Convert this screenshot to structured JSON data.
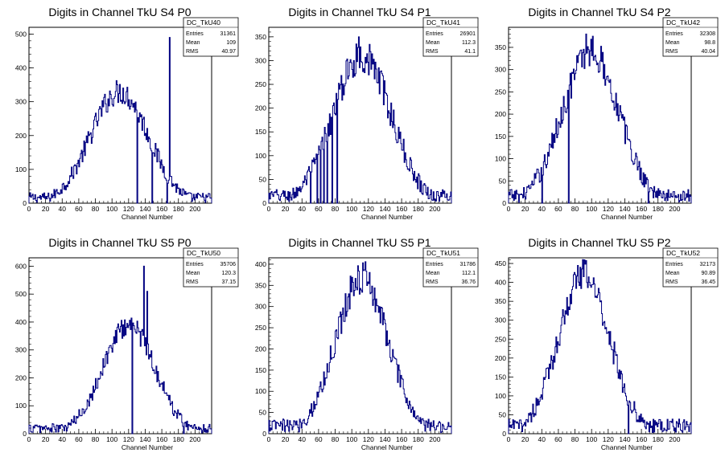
{
  "chart_data": [
    {
      "type": "histogram",
      "title": "Digits in Channel TkU S4 P0",
      "xlabel": "Channel Number",
      "stats": {
        "name": "DC_TkU40",
        "entries": "31361",
        "mean": "109",
        "rms": "40.97"
      },
      "xlim": [
        0,
        220
      ],
      "ylim": [
        0,
        520
      ],
      "xticks": [
        0,
        20,
        40,
        60,
        80,
        100,
        120,
        140,
        160,
        180,
        200
      ],
      "yticks": [
        0,
        100,
        200,
        300,
        400,
        500
      ],
      "bin_width": 1,
      "peak_value": 330,
      "spikes": [
        {
          "x": 169,
          "value": 490
        }
      ],
      "dips": [
        {
          "x": 130,
          "value": 0
        },
        {
          "x": 148,
          "value": 0
        },
        {
          "x": 166,
          "value": 0
        }
      ]
    },
    {
      "type": "histogram",
      "title": "Digits in Channel TkU S4 P1",
      "xlabel": "Channel Number",
      "stats": {
        "name": "DC_TkU41",
        "entries": "26901",
        "mean": "112.3",
        "rms": "41.1"
      },
      "xlim": [
        0,
        220
      ],
      "ylim": [
        0,
        370
      ],
      "xticks": [
        0,
        20,
        40,
        60,
        80,
        100,
        120,
        140,
        160,
        180,
        200
      ],
      "yticks": [
        0,
        50,
        100,
        150,
        200,
        250,
        300,
        350
      ],
      "bin_width": 1,
      "peak_value": 310,
      "spikes": [
        {
          "x": 108,
          "value": 350
        }
      ],
      "dips": [
        {
          "x": 50,
          "value": 0
        },
        {
          "x": 58,
          "value": 0
        },
        {
          "x": 62,
          "value": 0
        },
        {
          "x": 66,
          "value": 0
        },
        {
          "x": 70,
          "value": 0
        },
        {
          "x": 76,
          "value": 0
        },
        {
          "x": 82,
          "value": 0
        }
      ]
    },
    {
      "type": "histogram",
      "title": "Digits in Channel TkU S4 P2",
      "xlabel": "Channel Number",
      "stats": {
        "name": "DC_TkU42",
        "entries": "32308",
        "mean": "98.8",
        "rms": "40.04"
      },
      "xlim": [
        0,
        220
      ],
      "ylim": [
        0,
        395
      ],
      "xticks": [
        0,
        20,
        40,
        60,
        80,
        100,
        120,
        140,
        160,
        180,
        200
      ],
      "yticks": [
        0,
        50,
        100,
        150,
        200,
        250,
        300,
        350
      ],
      "bin_width": 1,
      "peak_value": 340,
      "spikes": [
        {
          "x": 93,
          "value": 380
        },
        {
          "x": 101,
          "value": 375
        }
      ],
      "dips": [
        {
          "x": 40,
          "value": 0
        },
        {
          "x": 72,
          "value": 0
        },
        {
          "x": 168,
          "value": 0
        }
      ]
    },
    {
      "type": "histogram",
      "title": "Digits in Channel TkU S5 P0",
      "xlabel": "Channel Number",
      "stats": {
        "name": "DC_TkU50",
        "entries": "35706",
        "mean": "120.3",
        "rms": "37.15"
      },
      "xlim": [
        0,
        220
      ],
      "ylim": [
        0,
        630
      ],
      "xticks": [
        0,
        20,
        40,
        60,
        80,
        100,
        120,
        140,
        160,
        180,
        200
      ],
      "yticks": [
        0,
        100,
        200,
        300,
        400,
        500,
        600
      ],
      "bin_width": 1,
      "peak_value": 390,
      "spikes": [
        {
          "x": 138,
          "value": 600
        },
        {
          "x": 142,
          "value": 510
        }
      ],
      "dips": [
        {
          "x": 124,
          "value": 0
        },
        {
          "x": 186,
          "value": 0
        }
      ]
    },
    {
      "type": "histogram",
      "title": "Digits in Channel TkU S5 P1",
      "xlabel": "Channel Number",
      "stats": {
        "name": "DC_TkU51",
        "entries": "31786",
        "mean": "112.1",
        "rms": "36.76"
      },
      "xlim": [
        0,
        220
      ],
      "ylim": [
        0,
        415
      ],
      "xticks": [
        0,
        20,
        40,
        60,
        80,
        100,
        120,
        140,
        160,
        180,
        200
      ],
      "yticks": [
        0,
        50,
        100,
        150,
        200,
        250,
        300,
        350,
        400
      ],
      "bin_width": 1,
      "peak_value": 370,
      "spikes": [
        {
          "x": 114,
          "value": 385
        }
      ],
      "dips": []
    },
    {
      "type": "histogram",
      "title": "Digits in Channel TkU S5 P2",
      "xlabel": "Channel Number",
      "stats": {
        "name": "DC_TkU52",
        "entries": "32173",
        "mean": "90.89",
        "rms": "36.45"
      },
      "xlim": [
        0,
        220
      ],
      "ylim": [
        0,
        465
      ],
      "xticks": [
        0,
        20,
        40,
        60,
        80,
        100,
        120,
        140,
        160,
        180,
        200
      ],
      "yticks": [
        0,
        50,
        100,
        150,
        200,
        250,
        300,
        350,
        400,
        450
      ],
      "bin_width": 1,
      "peak_value": 420,
      "spikes": [
        {
          "x": 86,
          "value": 440
        }
      ],
      "dips": [
        {
          "x": 144,
          "value": 0
        }
      ]
    }
  ],
  "stat_labels": {
    "entries": "Entries",
    "mean": "Mean",
    "rms": "RMS"
  },
  "colors": {
    "line": "#000080",
    "axis": "#000000",
    "background": "#ffffff"
  }
}
